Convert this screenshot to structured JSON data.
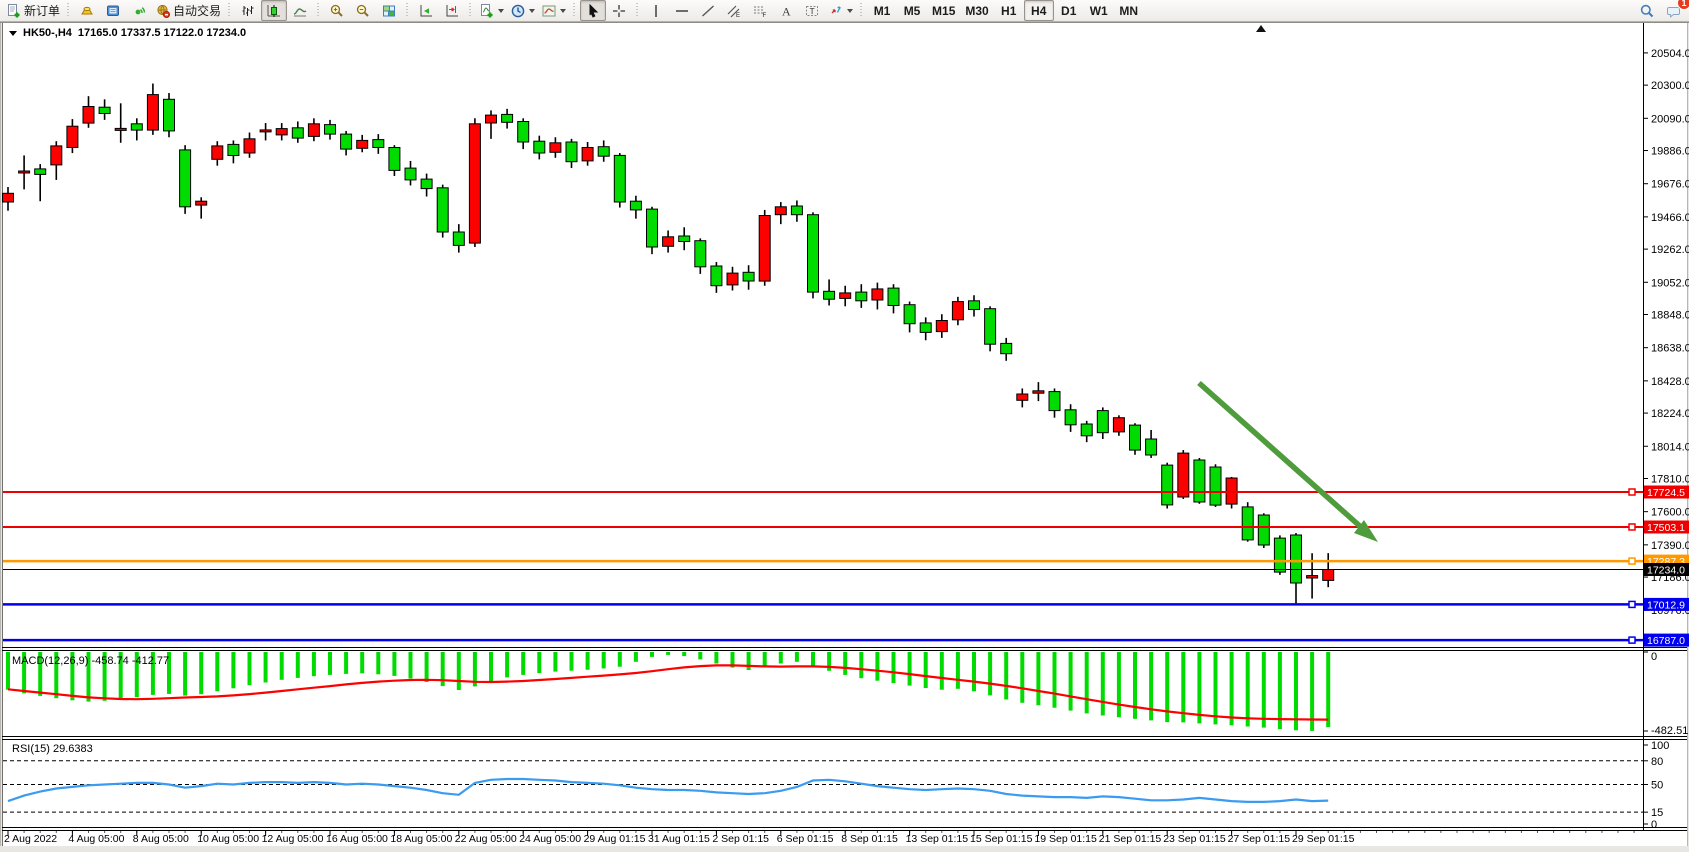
{
  "app": {
    "kind": "MetaTrader chart window"
  },
  "toolbar": {
    "groups": [
      {
        "items": [
          {
            "name": "new-order",
            "icon": "document-plus-icon",
            "label": "新订单"
          }
        ]
      },
      {
        "items": [
          {
            "name": "market-watch",
            "icon": "gold-ingot-icon"
          },
          {
            "name": "history-center",
            "icon": "blue-book-icon"
          },
          {
            "name": "signals",
            "icon": "green-signal-icon"
          },
          {
            "name": "auto-trading",
            "icon": "globe-stop-icon",
            "label": "自动交易"
          }
        ]
      },
      {
        "items": [
          {
            "name": "bar-chart-mode",
            "icon": "bar-chart-icon"
          },
          {
            "name": "candlestick-mode",
            "icon": "candlestick-icon",
            "active": true
          },
          {
            "name": "line-chart-mode",
            "icon": "line-chart-icon"
          }
        ]
      },
      {
        "items": [
          {
            "name": "zoom-in",
            "icon": "zoom-in-icon"
          },
          {
            "name": "zoom-out",
            "icon": "zoom-out-icon"
          },
          {
            "name": "tile-windows",
            "icon": "tile-windows-icon"
          }
        ]
      },
      {
        "items": [
          {
            "name": "auto-scroll",
            "icon": "auto-scroll-icon"
          },
          {
            "name": "chart-shift",
            "icon": "chart-shift-icon"
          }
        ]
      },
      {
        "items": [
          {
            "name": "indicators",
            "icon": "indicator-plus-icon",
            "dropdown": true
          },
          {
            "name": "periods",
            "icon": "clock-icon",
            "dropdown": true
          },
          {
            "name": "templates",
            "icon": "template-chart-icon",
            "dropdown": true
          }
        ]
      },
      {
        "items": [
          {
            "name": "cursor",
            "icon": "cursor-icon",
            "active": true
          },
          {
            "name": "crosshair",
            "icon": "crosshair-icon"
          }
        ]
      },
      {
        "items": [
          {
            "name": "vertical-line",
            "icon": "vertical-line-icon"
          },
          {
            "name": "horizontal-line",
            "icon": "horizontal-line-icon"
          },
          {
            "name": "trend-line",
            "icon": "trend-line-icon"
          },
          {
            "name": "equidistant-channel",
            "icon": "channel-icon"
          },
          {
            "name": "fibonacci",
            "icon": "fibonacci-icon"
          },
          {
            "name": "text",
            "icon": "text-a-icon"
          },
          {
            "name": "text-label",
            "icon": "text-label-icon"
          },
          {
            "name": "arrows",
            "icon": "arrows-icon",
            "dropdown": true
          }
        ]
      },
      {
        "tf": true,
        "items": [
          {
            "name": "timeframe-m1",
            "label": "M1"
          },
          {
            "name": "timeframe-m5",
            "label": "M5"
          },
          {
            "name": "timeframe-m15",
            "label": "M15"
          },
          {
            "name": "timeframe-m30",
            "label": "M30"
          },
          {
            "name": "timeframe-h1",
            "label": "H1"
          },
          {
            "name": "timeframe-h4",
            "label": "H4",
            "active": true
          },
          {
            "name": "timeframe-d1",
            "label": "D1"
          },
          {
            "name": "timeframe-w1",
            "label": "W1"
          },
          {
            "name": "timeframe-mn",
            "label": "MN"
          }
        ]
      }
    ],
    "right": [
      {
        "name": "search",
        "icon": "search-icon"
      },
      {
        "name": "chat",
        "icon": "chat-icon",
        "badge": "1"
      }
    ]
  },
  "title": {
    "symbol": "HK50-,H4",
    "ohlc": "17165.0 17337.5 17122.0 17234.0"
  },
  "chart_data": {
    "type": "candlestick",
    "symbol": "HK50-",
    "timeframe": "H4",
    "last_bar": {
      "open": 17165.0,
      "high": 17337.5,
      "low": 17122.0,
      "close": 17234.0
    },
    "colors": {
      "bull": "#fd0000",
      "bear": "#00dc00",
      "wick": "#000000",
      "macd_hist": "#00dc00",
      "macd_signal": "#fd0000",
      "rsi_line": "#3a9bf0",
      "arrow": "#4e9c3c"
    },
    "price_axis": {
      "ylim": [
        16770,
        20620
      ],
      "ticks": [
        "20504.0",
        "20300.0",
        "20090.0",
        "19886.0",
        "19676.0",
        "19466.0",
        "19262.0",
        "19052.0",
        "18848.0",
        "18638.0",
        "18428.0",
        "18224.0",
        "18014.0",
        "17810.0",
        "17600.0",
        "17390.0",
        "17186.0",
        "16976.0"
      ]
    },
    "horizontal_lines": [
      {
        "price": 17724.5,
        "label": "17724.5",
        "color": "#ef0000",
        "width": 2
      },
      {
        "price": 17503.1,
        "label": "17503.1",
        "color": "#ef0000",
        "width": 2
      },
      {
        "price": 17287.3,
        "label": "17287.3",
        "color": "#ff9900",
        "width": 2.5
      },
      {
        "price": 17234.0,
        "label": "17234.0",
        "color": "#000000",
        "width": 1,
        "current_price": true
      },
      {
        "price": 17012.9,
        "label": "17012.9",
        "color": "#0000ee",
        "width": 2.5
      },
      {
        "price": 16787.0,
        "label": "16787.0",
        "color": "#0000ee",
        "width": 2.5
      }
    ],
    "annotation_arrow": {
      "direction": "down-right",
      "color": "#4e9c3c"
    },
    "candles": [
      [
        19560,
        19655,
        19505,
        19615
      ],
      [
        19745,
        19855,
        19640,
        19750
      ],
      [
        19770,
        19800,
        19565,
        19735
      ],
      [
        19795,
        19945,
        19700,
        19915
      ],
      [
        19905,
        20085,
        19870,
        20040
      ],
      [
        20060,
        20230,
        20030,
        20165
      ],
      [
        20160,
        20210,
        20080,
        20120
      ],
      [
        20015,
        20185,
        19935,
        20020
      ],
      [
        20055,
        20090,
        19950,
        20015
      ],
      [
        20015,
        20310,
        19985,
        20240
      ],
      [
        20210,
        20250,
        19970,
        20010
      ],
      [
        19890,
        19920,
        19485,
        19530
      ],
      [
        19540,
        19590,
        19455,
        19565
      ],
      [
        19830,
        19945,
        19790,
        19915
      ],
      [
        19925,
        19950,
        19805,
        19855
      ],
      [
        19870,
        20000,
        19840,
        19960
      ],
      [
        20005,
        20060,
        19950,
        20010
      ],
      [
        19985,
        20060,
        19950,
        20025
      ],
      [
        20030,
        20070,
        19935,
        19965
      ],
      [
        19975,
        20090,
        19945,
        20055
      ],
      [
        20050,
        20080,
        19955,
        19990
      ],
      [
        19990,
        20010,
        19855,
        19895
      ],
      [
        19900,
        19985,
        19875,
        19950
      ],
      [
        19955,
        19990,
        19865,
        19905
      ],
      [
        19905,
        19920,
        19725,
        19760
      ],
      [
        19775,
        19820,
        19665,
        19700
      ],
      [
        19705,
        19740,
        19595,
        19645
      ],
      [
        19650,
        19670,
        19335,
        19370
      ],
      [
        19370,
        19420,
        19240,
        19285
      ],
      [
        19300,
        20090,
        19275,
        20055
      ],
      [
        20060,
        20140,
        19960,
        20110
      ],
      [
        20115,
        20150,
        20025,
        20065
      ],
      [
        20070,
        20090,
        19895,
        19940
      ],
      [
        19945,
        19980,
        19830,
        19870
      ],
      [
        19875,
        19970,
        19840,
        19935
      ],
      [
        19940,
        19960,
        19775,
        19815
      ],
      [
        19820,
        19940,
        19790,
        19905
      ],
      [
        19910,
        19950,
        19815,
        19850
      ],
      [
        19855,
        19870,
        19525,
        19560
      ],
      [
        19565,
        19600,
        19455,
        19510
      ],
      [
        19515,
        19530,
        19230,
        19275
      ],
      [
        19280,
        19380,
        19240,
        19340
      ],
      [
        19345,
        19400,
        19255,
        19310
      ],
      [
        19315,
        19330,
        19105,
        19150
      ],
      [
        19155,
        19180,
        18985,
        19030
      ],
      [
        19035,
        19150,
        19000,
        19110
      ],
      [
        19115,
        19160,
        19005,
        19060
      ],
      [
        19060,
        19510,
        19030,
        19475
      ],
      [
        19480,
        19560,
        19420,
        19530
      ],
      [
        19535,
        19570,
        19435,
        19480
      ],
      [
        19480,
        19495,
        18950,
        18990
      ],
      [
        18995,
        19070,
        18905,
        18945
      ],
      [
        18950,
        19030,
        18900,
        18985
      ],
      [
        18990,
        19040,
        18890,
        18935
      ],
      [
        18940,
        19050,
        18880,
        19010
      ],
      [
        19015,
        19040,
        18855,
        18905
      ],
      [
        18910,
        18930,
        18735,
        18790
      ],
      [
        18795,
        18830,
        18685,
        18735
      ],
      [
        18740,
        18850,
        18700,
        18810
      ],
      [
        18815,
        18960,
        18780,
        18930
      ],
      [
        18935,
        18970,
        18835,
        18880
      ],
      [
        18885,
        18900,
        18615,
        18660
      ],
      [
        18665,
        18700,
        18555,
        18600
      ],
      [
        18305,
        18380,
        18260,
        18345
      ],
      [
        18350,
        18420,
        18300,
        18365
      ],
      [
        18360,
        18380,
        18195,
        18240
      ],
      [
        18245,
        18280,
        18105,
        18150
      ],
      [
        18155,
        18175,
        18040,
        18080
      ],
      [
        18240,
        18260,
        18060,
        18100
      ],
      [
        18105,
        18210,
        18080,
        18195
      ],
      [
        18148,
        18160,
        17960,
        17990
      ],
      [
        18060,
        18117,
        17940,
        17959
      ],
      [
        17895,
        17910,
        17620,
        17643
      ],
      [
        17693,
        17990,
        17680,
        17971
      ],
      [
        17927,
        17940,
        17650,
        17661
      ],
      [
        17883,
        17900,
        17630,
        17642
      ],
      [
        17648,
        17820,
        17620,
        17813
      ],
      [
        17630,
        17660,
        17410,
        17421
      ],
      [
        17579,
        17590,
        17370,
        17389
      ],
      [
        17433,
        17450,
        17200,
        17218
      ],
      [
        17452,
        17465,
        17010,
        17148
      ],
      [
        17180,
        17337,
        17050,
        17195
      ],
      [
        17165,
        17337.5,
        17122,
        17234
      ]
    ],
    "indicators": {
      "macd": {
        "label": "MACD(12,26,9)",
        "values_text": "-458.74 -412.77",
        "axis_labels": [
          "0",
          "-482.51"
        ],
        "scale": {
          "max": 0,
          "min": -482.51
        },
        "histogram": [
          -230,
          -252,
          -268,
          -282,
          -295,
          -303,
          -298,
          -288,
          -276,
          -262,
          -256,
          -266,
          -258,
          -240,
          -222,
          -203,
          -186,
          -170,
          -158,
          -148,
          -140,
          -134,
          -130,
          -136,
          -146,
          -162,
          -183,
          -208,
          -232,
          -210,
          -178,
          -155,
          -140,
          -128,
          -120,
          -114,
          -108,
          -100,
          -90,
          -60,
          -30,
          -18,
          -25,
          -45,
          -70,
          -95,
          -110,
          -90,
          -70,
          -60,
          -85,
          -115,
          -140,
          -160,
          -175,
          -190,
          -205,
          -220,
          -230,
          -225,
          -240,
          -265,
          -290,
          -310,
          -325,
          -340,
          -358,
          -375,
          -388,
          -398,
          -408,
          -418,
          -428,
          -430,
          -436,
          -442,
          -448,
          -455,
          -462,
          -470,
          -478,
          -482,
          -458.74
        ],
        "signal": [
          -228,
          -238,
          -248,
          -258,
          -268,
          -277,
          -283,
          -287,
          -288,
          -286,
          -282,
          -278,
          -275,
          -271,
          -265,
          -257,
          -248,
          -238,
          -228,
          -218,
          -208,
          -198,
          -189,
          -181,
          -175,
          -171,
          -170,
          -172,
          -177,
          -182,
          -183,
          -181,
          -177,
          -171,
          -165,
          -158,
          -151,
          -144,
          -137,
          -128,
          -117,
          -105,
          -94,
          -86,
          -82,
          -82,
          -85,
          -88,
          -89,
          -88,
          -88,
          -91,
          -97,
          -105,
          -114,
          -124,
          -135,
          -147,
          -159,
          -170,
          -181,
          -193,
          -207,
          -222,
          -238,
          -254,
          -271,
          -288,
          -305,
          -321,
          -336,
          -350,
          -363,
          -374,
          -384,
          -393,
          -400,
          -405,
          -408,
          -410,
          -411,
          -412,
          -412.77
        ]
      },
      "rsi": {
        "label": "RSI(15)",
        "value_text": "29.6383",
        "axis_labels": [
          "100",
          "80",
          "50",
          "15",
          "0"
        ],
        "dashed_levels": [
          80,
          50,
          15
        ],
        "scale": {
          "max": 100,
          "min": 0
        },
        "series": [
          29,
          36,
          41,
          45,
          47,
          49,
          50,
          51,
          52,
          52,
          50,
          46,
          48,
          51,
          50,
          52,
          53,
          53,
          52,
          53,
          52,
          50,
          51,
          50,
          48,
          46,
          43,
          39,
          37,
          52,
          56,
          57,
          57,
          56,
          55,
          53,
          52,
          51,
          49,
          46,
          44,
          43,
          43,
          42,
          40,
          39,
          38,
          39,
          42,
          47,
          55,
          56,
          54,
          51,
          48,
          46,
          44,
          43,
          44,
          45,
          44,
          42,
          38,
          36,
          35,
          34,
          34,
          33,
          35,
          34,
          32,
          30,
          30,
          31,
          33,
          31,
          29,
          28,
          28,
          29,
          31,
          29,
          29.6383
        ]
      }
    },
    "time_axis": {
      "labels": [
        "2 Aug 2022",
        "4 Aug 05:00",
        "8 Aug 05:00",
        "10 Aug 05:00",
        "12 Aug 05:00",
        "16 Aug 05:00",
        "18 Aug 05:00",
        "22 Aug 05:00",
        "24 Aug 05:00",
        "29 Aug 01:15",
        "31 Aug 01:15",
        "2 Sep 01:15",
        "6 Sep 01:15",
        "8 Sep 01:15",
        "13 Sep 01:15",
        "15 Sep 01:15",
        "19 Sep 01:15",
        "21 Sep 01:15",
        "23 Sep 01:15",
        "27 Sep 01:15",
        "29 Sep 01:15"
      ]
    }
  }
}
